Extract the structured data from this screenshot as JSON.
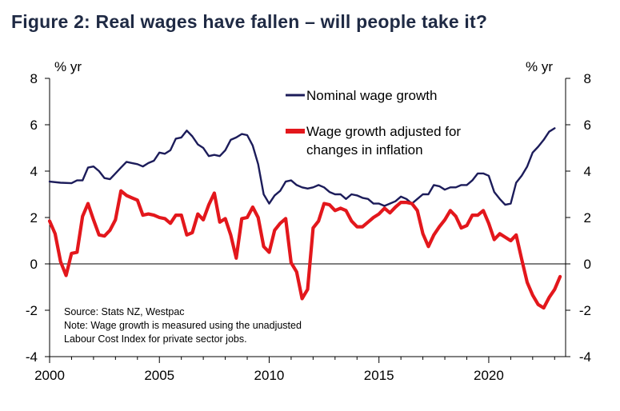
{
  "figure_title": "Figure 2: Real wages have fallen – will people take it?",
  "colors": {
    "nominal": "#1c1c5a",
    "real": "#e3171c",
    "axis": "#000000"
  },
  "chart_data": {
    "type": "line",
    "title": "Figure 2: Real wages have fallen – will people take it?",
    "left_axis_label": "% yr",
    "right_axis_label": "% yr",
    "xlim": [
      2000,
      2023.5
    ],
    "ylim": [
      -4,
      8
    ],
    "x_ticks": [
      2000,
      2005,
      2010,
      2015,
      2020
    ],
    "y_ticks": [
      -4,
      -2,
      0,
      2,
      4,
      6,
      8
    ],
    "legend": [
      "Nominal wage growth",
      "Wage growth adjusted for changes in inflation"
    ],
    "notes": [
      "Source: Stats NZ, Westpac",
      "Note: Wage growth is measured using the unadjusted",
      "Labour Cost Index for private sector jobs."
    ],
    "series": [
      {
        "name": "Nominal wage growth",
        "points": [
          [
            2000.0,
            3.55
          ],
          [
            2000.5,
            3.5
          ],
          [
            2001.0,
            3.48
          ],
          [
            2001.25,
            3.6
          ],
          [
            2001.5,
            3.6
          ],
          [
            2001.75,
            4.15
          ],
          [
            2002.0,
            4.2
          ],
          [
            2002.25,
            4.0
          ],
          [
            2002.5,
            3.7
          ],
          [
            2002.75,
            3.65
          ],
          [
            2003.0,
            3.9
          ],
          [
            2003.25,
            4.15
          ],
          [
            2003.5,
            4.4
          ],
          [
            2003.75,
            4.35
          ],
          [
            2004.0,
            4.3
          ],
          [
            2004.25,
            4.2
          ],
          [
            2004.5,
            4.35
          ],
          [
            2004.75,
            4.45
          ],
          [
            2005.0,
            4.8
          ],
          [
            2005.25,
            4.75
          ],
          [
            2005.5,
            4.9
          ],
          [
            2005.75,
            5.4
          ],
          [
            2006.0,
            5.45
          ],
          [
            2006.25,
            5.75
          ],
          [
            2006.5,
            5.5
          ],
          [
            2006.75,
            5.15
          ],
          [
            2007.0,
            5.0
          ],
          [
            2007.25,
            4.65
          ],
          [
            2007.5,
            4.7
          ],
          [
            2007.75,
            4.65
          ],
          [
            2008.0,
            4.9
          ],
          [
            2008.25,
            5.35
          ],
          [
            2008.5,
            5.45
          ],
          [
            2008.75,
            5.6
          ],
          [
            2009.0,
            5.55
          ],
          [
            2009.25,
            5.1
          ],
          [
            2009.5,
            4.3
          ],
          [
            2009.75,
            3.0
          ],
          [
            2010.0,
            2.6
          ],
          [
            2010.25,
            2.95
          ],
          [
            2010.5,
            3.15
          ],
          [
            2010.75,
            3.55
          ],
          [
            2011.0,
            3.6
          ],
          [
            2011.25,
            3.4
          ],
          [
            2011.5,
            3.3
          ],
          [
            2011.75,
            3.25
          ],
          [
            2012.0,
            3.3
          ],
          [
            2012.25,
            3.4
          ],
          [
            2012.5,
            3.3
          ],
          [
            2012.75,
            3.1
          ],
          [
            2013.0,
            3.0
          ],
          [
            2013.25,
            3.0
          ],
          [
            2013.5,
            2.8
          ],
          [
            2013.75,
            3.0
          ],
          [
            2014.0,
            2.95
          ],
          [
            2014.25,
            2.85
          ],
          [
            2014.5,
            2.8
          ],
          [
            2014.75,
            2.6
          ],
          [
            2015.0,
            2.6
          ],
          [
            2015.25,
            2.5
          ],
          [
            2015.5,
            2.6
          ],
          [
            2015.75,
            2.7
          ],
          [
            2016.0,
            2.9
          ],
          [
            2016.25,
            2.8
          ],
          [
            2016.5,
            2.6
          ],
          [
            2016.75,
            2.8
          ],
          [
            2017.0,
            3.0
          ],
          [
            2017.25,
            3.0
          ],
          [
            2017.5,
            3.4
          ],
          [
            2017.75,
            3.35
          ],
          [
            2018.0,
            3.2
          ],
          [
            2018.25,
            3.3
          ],
          [
            2018.5,
            3.3
          ],
          [
            2018.75,
            3.4
          ],
          [
            2019.0,
            3.4
          ],
          [
            2019.25,
            3.6
          ],
          [
            2019.5,
            3.9
          ],
          [
            2019.75,
            3.9
          ],
          [
            2020.0,
            3.8
          ],
          [
            2020.25,
            3.1
          ],
          [
            2020.5,
            2.8
          ],
          [
            2020.75,
            2.55
          ],
          [
            2021.0,
            2.6
          ],
          [
            2021.25,
            3.5
          ],
          [
            2021.5,
            3.8
          ],
          [
            2021.75,
            4.2
          ],
          [
            2022.0,
            4.8
          ],
          [
            2022.25,
            5.05
          ],
          [
            2022.5,
            5.35
          ],
          [
            2022.75,
            5.7
          ],
          [
            2023.0,
            5.85
          ]
        ]
      },
      {
        "name": "Wage growth adjusted for changes in inflation",
        "points": [
          [
            2000.0,
            1.85
          ],
          [
            2000.25,
            1.3
          ],
          [
            2000.5,
            0.1
          ],
          [
            2000.75,
            -0.5
          ],
          [
            2001.0,
            0.45
          ],
          [
            2001.25,
            0.5
          ],
          [
            2001.5,
            2.05
          ],
          [
            2001.75,
            2.6
          ],
          [
            2002.0,
            1.9
          ],
          [
            2002.25,
            1.25
          ],
          [
            2002.5,
            1.2
          ],
          [
            2002.75,
            1.45
          ],
          [
            2003.0,
            1.9
          ],
          [
            2003.25,
            3.15
          ],
          [
            2003.5,
            2.95
          ],
          [
            2003.75,
            2.85
          ],
          [
            2004.0,
            2.75
          ],
          [
            2004.25,
            2.1
          ],
          [
            2004.5,
            2.15
          ],
          [
            2004.75,
            2.1
          ],
          [
            2005.0,
            2.0
          ],
          [
            2005.25,
            1.95
          ],
          [
            2005.5,
            1.75
          ],
          [
            2005.75,
            2.1
          ],
          [
            2006.0,
            2.1
          ],
          [
            2006.25,
            1.25
          ],
          [
            2006.5,
            1.35
          ],
          [
            2006.75,
            2.15
          ],
          [
            2007.0,
            1.9
          ],
          [
            2007.25,
            2.55
          ],
          [
            2007.5,
            3.05
          ],
          [
            2007.75,
            1.8
          ],
          [
            2008.0,
            1.95
          ],
          [
            2008.25,
            1.25
          ],
          [
            2008.5,
            0.25
          ],
          [
            2008.75,
            1.95
          ],
          [
            2009.0,
            2.0
          ],
          [
            2009.25,
            2.45
          ],
          [
            2009.5,
            2.0
          ],
          [
            2009.75,
            0.75
          ],
          [
            2010.0,
            0.5
          ],
          [
            2010.25,
            1.45
          ],
          [
            2010.5,
            1.75
          ],
          [
            2010.75,
            1.95
          ],
          [
            2011.0,
            0.05
          ],
          [
            2011.25,
            -0.35
          ],
          [
            2011.5,
            -1.5
          ],
          [
            2011.75,
            -1.1
          ],
          [
            2012.0,
            1.55
          ],
          [
            2012.25,
            1.85
          ],
          [
            2012.5,
            2.6
          ],
          [
            2012.75,
            2.55
          ],
          [
            2013.0,
            2.3
          ],
          [
            2013.25,
            2.4
          ],
          [
            2013.5,
            2.3
          ],
          [
            2013.75,
            1.85
          ],
          [
            2014.0,
            1.6
          ],
          [
            2014.25,
            1.6
          ],
          [
            2014.5,
            1.8
          ],
          [
            2014.75,
            2.0
          ],
          [
            2015.0,
            2.15
          ],
          [
            2015.25,
            2.4
          ],
          [
            2015.5,
            2.2
          ],
          [
            2015.75,
            2.45
          ],
          [
            2016.0,
            2.65
          ],
          [
            2016.25,
            2.65
          ],
          [
            2016.5,
            2.6
          ],
          [
            2016.75,
            2.3
          ],
          [
            2017.0,
            1.3
          ],
          [
            2017.25,
            0.75
          ],
          [
            2017.5,
            1.25
          ],
          [
            2017.75,
            1.6
          ],
          [
            2018.0,
            1.9
          ],
          [
            2018.25,
            2.3
          ],
          [
            2018.5,
            2.05
          ],
          [
            2018.75,
            1.55
          ],
          [
            2019.0,
            1.65
          ],
          [
            2019.25,
            2.1
          ],
          [
            2019.5,
            2.1
          ],
          [
            2019.75,
            2.3
          ],
          [
            2020.0,
            1.75
          ],
          [
            2020.25,
            1.05
          ],
          [
            2020.5,
            1.3
          ],
          [
            2020.75,
            1.15
          ],
          [
            2021.0,
            1.0
          ],
          [
            2021.25,
            1.25
          ],
          [
            2021.5,
            0.2
          ],
          [
            2021.75,
            -0.8
          ],
          [
            2022.0,
            -1.35
          ],
          [
            2022.25,
            -1.75
          ],
          [
            2022.5,
            -1.9
          ],
          [
            2022.75,
            -1.45
          ],
          [
            2023.0,
            -1.1
          ],
          [
            2023.25,
            -0.55
          ]
        ]
      }
    ]
  }
}
